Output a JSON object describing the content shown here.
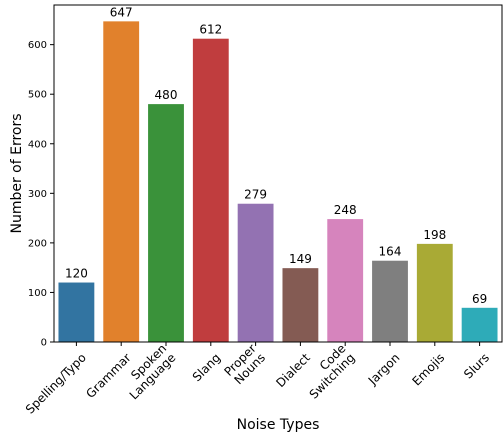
{
  "chart_data": {
    "type": "bar",
    "categories": [
      "Spelling/Typo",
      "Grammar",
      "Spoken\nLanguage",
      "Slang",
      "Proper\nNouns",
      "Dialect",
      "Code\nSwitching",
      "Jargon",
      "Emojis",
      "Slurs"
    ],
    "values": [
      120,
      647,
      480,
      612,
      279,
      149,
      248,
      164,
      198,
      69
    ],
    "colors": [
      "#3274a1",
      "#e1812c",
      "#3a923a",
      "#c03d3e",
      "#9372b2",
      "#845b53",
      "#d684bd",
      "#7f7f7f",
      "#a9aa35",
      "#2eabb8"
    ],
    "xlabel": "Noise Types",
    "ylabel": "Number of Errors",
    "ylim": [
      0,
      680
    ],
    "yticks": [
      0,
      100,
      200,
      300,
      400,
      500,
      600
    ],
    "grid": false,
    "legend": false
  }
}
